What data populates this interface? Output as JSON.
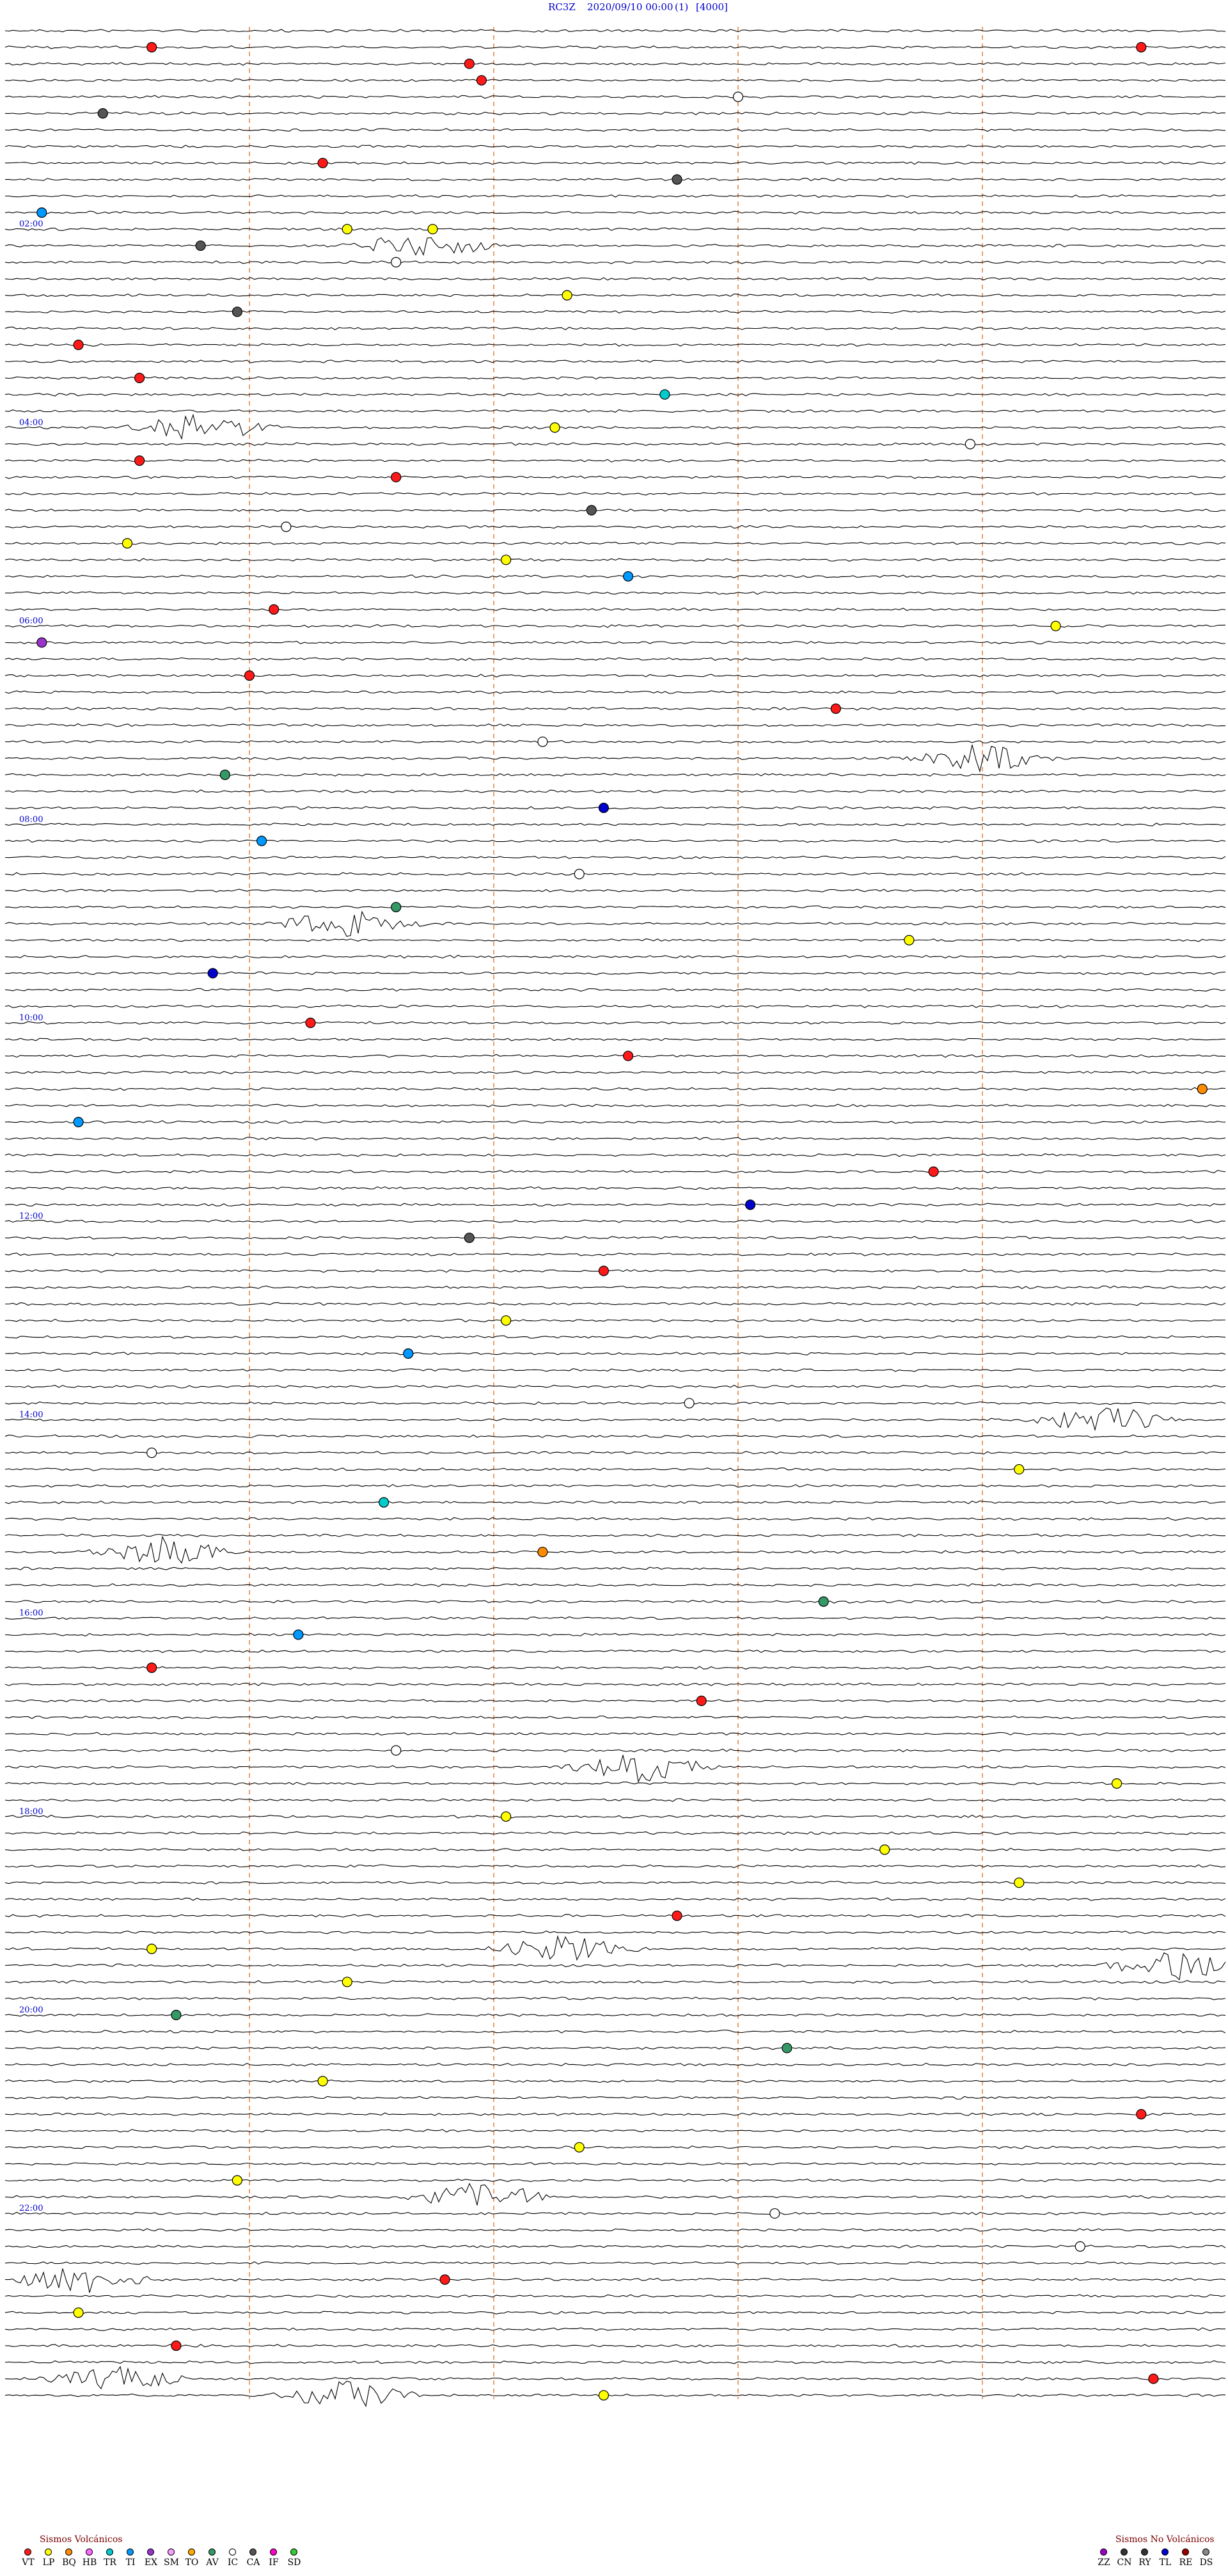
{
  "header": {
    "station": "RC3Z",
    "datetime": "2020/09/10 00:00",
    "day_index": "(1)",
    "scale": "[4000]"
  },
  "chart_data": {
    "type": "helicorder",
    "rows": 144,
    "minutes_per_row": 10,
    "hour_labels": [
      "02:00",
      "04:00",
      "06:00",
      "08:00",
      "10:00",
      "12:00",
      "14:00",
      "16:00",
      "18:00",
      "20:00",
      "22:00"
    ],
    "hour_label_rows": [
      12,
      24,
      36,
      48,
      60,
      72,
      84,
      96,
      108,
      120,
      132
    ],
    "grid": true,
    "colors": {
      "trace": "#000000",
      "hour_label": "#0000cc",
      "grid_line": "#e8a070",
      "VT": "#ff1a1a",
      "LP": "#ffff00",
      "BQ": "#ff8c00",
      "HB": "#ff66ff",
      "TR": "#00cccc",
      "TI": "#0099ff",
      "EX": "#9933cc",
      "SM": "#ff99ff",
      "TO": "#ffaa00",
      "AV": "#339966",
      "IC": "#ffffff",
      "CA": "#555555",
      "IF": "#ff00cc",
      "SD": "#33cc33",
      "ZZ": "#9900cc",
      "CN": "#333333",
      "RY": "#333333",
      "TL": "#0000cc",
      "RE": "#990000",
      "DS": "#888888"
    },
    "events": [
      {
        "row": 1,
        "minute": 1.2,
        "type": "VT"
      },
      {
        "row": 1,
        "minute": 9.3,
        "type": "VT"
      },
      {
        "row": 2,
        "minute": 3.8,
        "type": "VT"
      },
      {
        "row": 3,
        "minute": 3.9,
        "type": "VT"
      },
      {
        "row": 4,
        "minute": 6.0,
        "type": "IC"
      },
      {
        "row": 5,
        "minute": 0.8,
        "type": "CA"
      },
      {
        "row": 8,
        "minute": 2.6,
        "type": "VT"
      },
      {
        "row": 9,
        "minute": 5.5,
        "type": "CA"
      },
      {
        "row": 11,
        "minute": 0.3,
        "type": "TI"
      },
      {
        "row": 12,
        "minute": 2.8,
        "type": "LP"
      },
      {
        "row": 12,
        "minute": 3.5,
        "type": "LP"
      },
      {
        "row": 13,
        "minute": 1.6,
        "type": "CA"
      },
      {
        "row": 14,
        "minute": 3.2,
        "type": "IC"
      },
      {
        "row": 16,
        "minute": 4.6,
        "type": "LP"
      },
      {
        "row": 17,
        "minute": 1.9,
        "type": "CA"
      },
      {
        "row": 19,
        "minute": 0.6,
        "type": "VT"
      },
      {
        "row": 21,
        "minute": 1.1,
        "type": "VT"
      },
      {
        "row": 22,
        "minute": 5.4,
        "type": "TR"
      },
      {
        "row": 24,
        "minute": 4.5,
        "type": "LP"
      },
      {
        "row": 25,
        "minute": 7.9,
        "type": "IC"
      },
      {
        "row": 26,
        "minute": 1.1,
        "type": "VT"
      },
      {
        "row": 27,
        "minute": 3.2,
        "type": "VT"
      },
      {
        "row": 29,
        "minute": 4.8,
        "type": "CA"
      },
      {
        "row": 30,
        "minute": 2.3,
        "type": "IC"
      },
      {
        "row": 31,
        "minute": 1.0,
        "type": "LP"
      },
      {
        "row": 32,
        "minute": 4.1,
        "type": "LP"
      },
      {
        "row": 33,
        "minute": 5.1,
        "type": "TI"
      },
      {
        "row": 35,
        "minute": 2.2,
        "type": "VT"
      },
      {
        "row": 36,
        "minute": 8.6,
        "type": "LP"
      },
      {
        "row": 37,
        "minute": 0.3,
        "type": "EX"
      },
      {
        "row": 39,
        "minute": 2.0,
        "type": "VT"
      },
      {
        "row": 41,
        "minute": 6.8,
        "type": "VT"
      },
      {
        "row": 43,
        "minute": 4.4,
        "type": "IC"
      },
      {
        "row": 45,
        "minute": 1.8,
        "type": "AV"
      },
      {
        "row": 47,
        "minute": 4.9,
        "type": "TL"
      },
      {
        "row": 49,
        "minute": 2.1,
        "type": "TI"
      },
      {
        "row": 51,
        "minute": 4.7,
        "type": "IC"
      },
      {
        "row": 53,
        "minute": 3.2,
        "type": "AV"
      },
      {
        "row": 55,
        "minute": 7.4,
        "type": "LP"
      },
      {
        "row": 57,
        "minute": 1.7,
        "type": "TL"
      },
      {
        "row": 60,
        "minute": 2.5,
        "type": "VT"
      },
      {
        "row": 62,
        "minute": 5.1,
        "type": "VT"
      },
      {
        "row": 64,
        "minute": 9.8,
        "type": "BQ"
      },
      {
        "row": 66,
        "minute": 0.6,
        "type": "TI"
      },
      {
        "row": 69,
        "minute": 7.6,
        "type": "VT"
      },
      {
        "row": 71,
        "minute": 6.1,
        "type": "TL"
      },
      {
        "row": 73,
        "minute": 3.8,
        "type": "CA"
      },
      {
        "row": 75,
        "minute": 4.9,
        "type": "VT"
      },
      {
        "row": 78,
        "minute": 4.1,
        "type": "LP"
      },
      {
        "row": 80,
        "minute": 3.3,
        "type": "TI"
      },
      {
        "row": 83,
        "minute": 5.6,
        "type": "IC"
      },
      {
        "row": 86,
        "minute": 1.2,
        "type": "IC"
      },
      {
        "row": 87,
        "minute": 8.3,
        "type": "LP"
      },
      {
        "row": 89,
        "minute": 3.1,
        "type": "TR"
      },
      {
        "row": 92,
        "minute": 4.4,
        "type": "BQ"
      },
      {
        "row": 95,
        "minute": 6.7,
        "type": "AV"
      },
      {
        "row": 97,
        "minute": 2.4,
        "type": "TI"
      },
      {
        "row": 99,
        "minute": 1.2,
        "type": "VT"
      },
      {
        "row": 101,
        "minute": 5.7,
        "type": "VT"
      },
      {
        "row": 104,
        "minute": 3.2,
        "type": "IC"
      },
      {
        "row": 106,
        "minute": 9.1,
        "type": "LP"
      },
      {
        "row": 108,
        "minute": 4.1,
        "type": "LP"
      },
      {
        "row": 110,
        "minute": 7.2,
        "type": "LP"
      },
      {
        "row": 112,
        "minute": 8.3,
        "type": "LP"
      },
      {
        "row": 114,
        "minute": 5.5,
        "type": "VT"
      },
      {
        "row": 116,
        "minute": 1.2,
        "type": "LP"
      },
      {
        "row": 118,
        "minute": 2.8,
        "type": "LP"
      },
      {
        "row": 120,
        "minute": 1.4,
        "type": "AV"
      },
      {
        "row": 122,
        "minute": 6.4,
        "type": "AV"
      },
      {
        "row": 124,
        "minute": 2.6,
        "type": "LP"
      },
      {
        "row": 126,
        "minute": 9.3,
        "type": "VT"
      },
      {
        "row": 128,
        "minute": 4.7,
        "type": "LP"
      },
      {
        "row": 130,
        "minute": 1.9,
        "type": "LP"
      },
      {
        "row": 132,
        "minute": 6.3,
        "type": "IC"
      },
      {
        "row": 134,
        "minute": 8.8,
        "type": "IC"
      },
      {
        "row": 136,
        "minute": 3.6,
        "type": "VT"
      },
      {
        "row": 138,
        "minute": 0.6,
        "type": "LP"
      },
      {
        "row": 140,
        "minute": 1.4,
        "type": "VT"
      },
      {
        "row": 142,
        "minute": 9.4,
        "type": "VT"
      },
      {
        "row": 143,
        "minute": 4.9,
        "type": "LP"
      }
    ],
    "tremor_bursts": [
      {
        "row": 13,
        "minute": 3.4
      },
      {
        "row": 24,
        "minute": 1.6
      },
      {
        "row": 44,
        "minute": 8.0
      },
      {
        "row": 54,
        "minute": 2.8
      },
      {
        "row": 84,
        "minute": 9.0
      },
      {
        "row": 92,
        "minute": 1.3
      },
      {
        "row": 105,
        "minute": 5.2
      },
      {
        "row": 116,
        "minute": 4.6
      },
      {
        "row": 117,
        "minute": 9.6
      },
      {
        "row": 131,
        "minute": 3.9
      },
      {
        "row": 136,
        "minute": 0.6
      },
      {
        "row": 142,
        "minute": 0.9
      },
      {
        "row": 143,
        "minute": 2.8
      }
    ]
  },
  "legend": {
    "volcanic_title": "Sismos Volcánicos",
    "volcanic": [
      "VT",
      "LP",
      "BQ",
      "HB",
      "TR",
      "TI",
      "EX",
      "SM",
      "TO",
      "AV",
      "IC",
      "CA",
      "IF",
      "SD"
    ],
    "non_volcanic_title": "Sismos No Volcánicos",
    "non_volcanic": [
      "ZZ",
      "CN",
      "RY",
      "TL",
      "RE",
      "DS"
    ]
  }
}
